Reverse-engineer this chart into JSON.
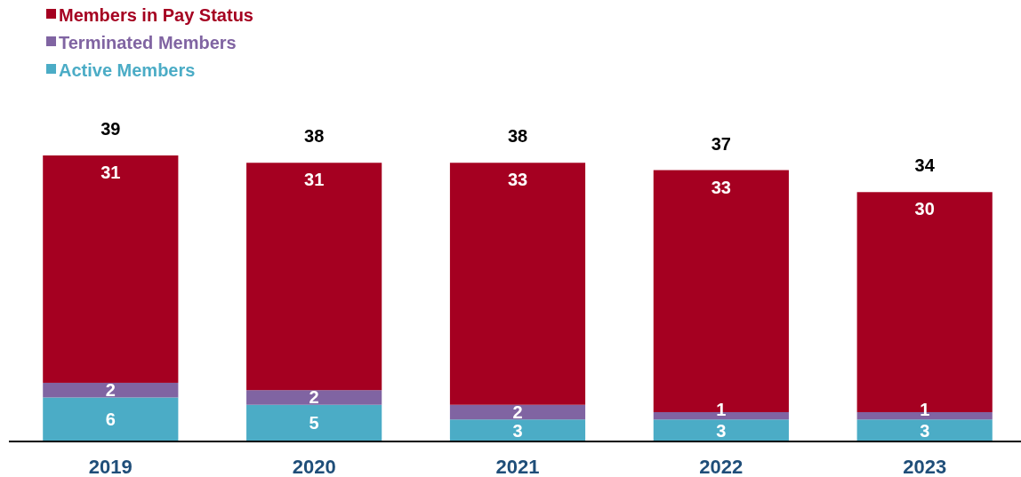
{
  "chart_data": {
    "type": "bar",
    "stacked": true,
    "categories": [
      "2019",
      "2020",
      "2021",
      "2022",
      "2023"
    ],
    "series": [
      {
        "name": "Active Members",
        "color": "#4bacc6",
        "values": [
          6,
          5,
          3,
          3,
          3
        ]
      },
      {
        "name": "Terminated Members",
        "color": "#8064a2",
        "values": [
          2,
          2,
          2,
          1,
          1
        ]
      },
      {
        "name": "Members in Pay Status",
        "color": "#a50021",
        "values": [
          31,
          31,
          33,
          33,
          30
        ]
      }
    ],
    "totals": [
      "39",
      "38",
      "38",
      "37",
      "34"
    ],
    "data_labels": true,
    "legend": "top left"
  }
}
